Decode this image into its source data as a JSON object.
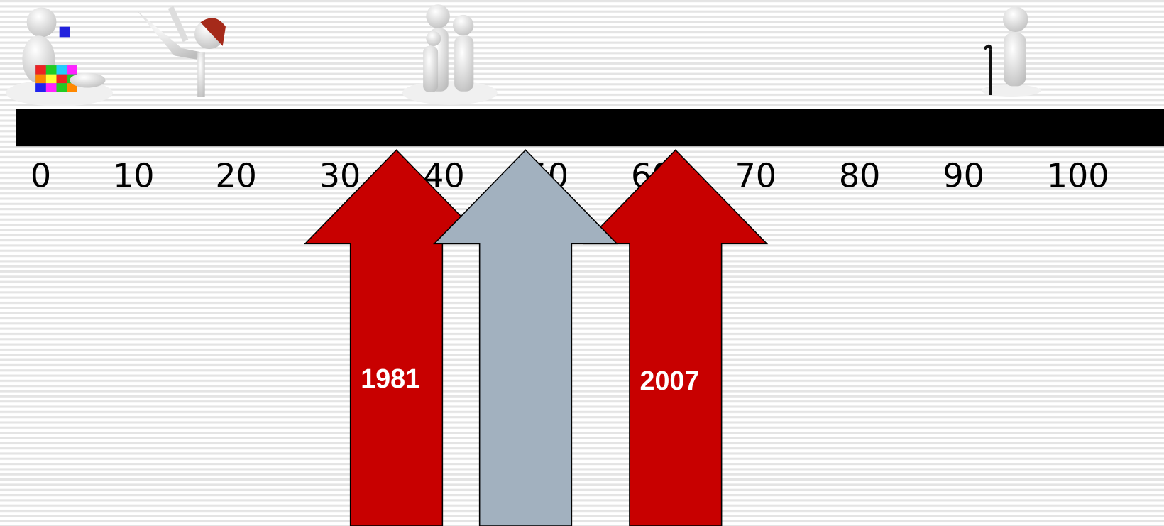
{
  "scale": [
    0,
    10,
    20,
    30,
    40,
    50,
    60,
    70,
    80,
    90,
    100
  ],
  "arrows": [
    {
      "label": "1981"
    },
    {
      "label": null
    },
    {
      "label": "2007"
    }
  ]
}
